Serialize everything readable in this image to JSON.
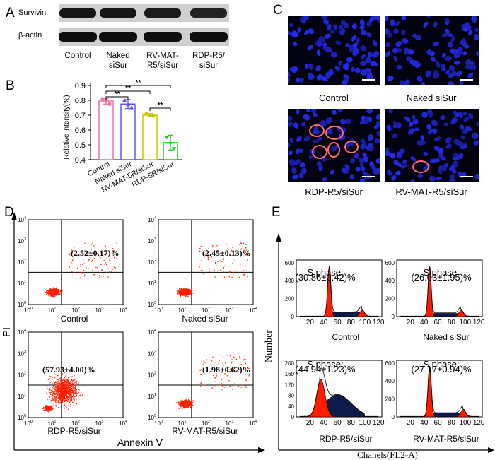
{
  "panel_labels": {
    "a": "A",
    "b": "B",
    "c": "C",
    "d": "D",
    "e": "E"
  },
  "colors": {
    "control": "#ee6fa0",
    "naked": "#5a5af0",
    "rv": "#c8c800",
    "rdp": "#1fcf1f",
    "flow_dots": "#ff2000",
    "histogram": "#ff1a00",
    "nucleus": "#1d1dcc",
    "ring": "#ff6a6a"
  },
  "western_blot": {
    "bands": [
      "Survivin",
      "β-actin"
    ],
    "lanes": [
      "Control",
      "Naked\nsiSur",
      "RV-MAT-\nR5/siSur",
      "RDP-R5/\nsiSur"
    ]
  },
  "chart_data": [
    {
      "type": "bar",
      "panel": "B",
      "categories": [
        "Control",
        "Naked siSur",
        "RV-MAT-5R/siSur",
        "RDP-5R/siSur"
      ],
      "values": [
        0.795,
        0.775,
        0.7,
        0.515
      ],
      "errors": [
        0.02,
        0.03,
        0.01,
        0.05
      ],
      "points": [
        [
          0.81,
          0.8,
          0.775
        ],
        [
          0.8,
          0.77,
          0.75
        ],
        [
          0.71,
          0.7,
          0.695
        ],
        [
          0.55,
          0.51,
          0.475
        ]
      ],
      "ylabel": "Relative intensity(%)",
      "yticks": [
        "0.4",
        "0.5",
        "0.6",
        "0.7",
        "0.8",
        "0.9"
      ],
      "ylim": [
        0.4,
        0.9
      ],
      "significance": [
        "**",
        "**",
        "**",
        "**"
      ]
    },
    {
      "type": "scatter",
      "panel": "D",
      "xlabel": "Annexin Ⅴ",
      "ylabel": "PI",
      "tick_exponents": [
        "0",
        "1",
        "2",
        "3",
        "4"
      ],
      "plots": [
        {
          "name": "Control",
          "value": "(2.52±0.17)%"
        },
        {
          "name": "Naked siSur",
          "value": "(2.45±0.13)%"
        },
        {
          "name": "RDP-R5/siSur",
          "value": "(57.93±4.00)%"
        },
        {
          "name": "RV-MAT-R5/siSur",
          "value": "(1.98±0.62)%"
        }
      ]
    },
    {
      "type": "area",
      "panel": "E",
      "xlabel": "Chanels(FL2-A)",
      "ylabel": "Number",
      "xticks": [
        "20",
        "40",
        "60",
        "80",
        "100",
        "120"
      ],
      "plots": [
        {
          "name": "Control",
          "phase_label": "S phase:",
          "value": "(30.86±0.42)%",
          "yticks": [
            "0",
            "200",
            "400",
            "600"
          ]
        },
        {
          "name": "Naked siSur",
          "phase_label": "S phase:",
          "value": "(26.03±1.95)%",
          "yticks": [
            "0",
            "200",
            "400",
            "600"
          ]
        },
        {
          "name": "RDP-R5/siSur",
          "phase_label": "S phase:",
          "value": "(44.94±1.23)%",
          "yticks": [
            "0",
            "40",
            "80",
            "120",
            "160",
            "200"
          ]
        },
        {
          "name": "RV-MAT-R5/siSur",
          "phase_label": "S phase:",
          "value": "(27.17±0.94)%",
          "yticks": [
            "0",
            "200",
            "400",
            "600"
          ]
        }
      ]
    }
  ],
  "microscopy": {
    "images": [
      {
        "label": "Control",
        "rings": 0
      },
      {
        "label": "Naked siSur",
        "rings": 0
      },
      {
        "label": "RDP-R5/siSur",
        "rings": 5
      },
      {
        "label": "RV-MAT-R5/siSur",
        "rings": 1
      }
    ]
  }
}
